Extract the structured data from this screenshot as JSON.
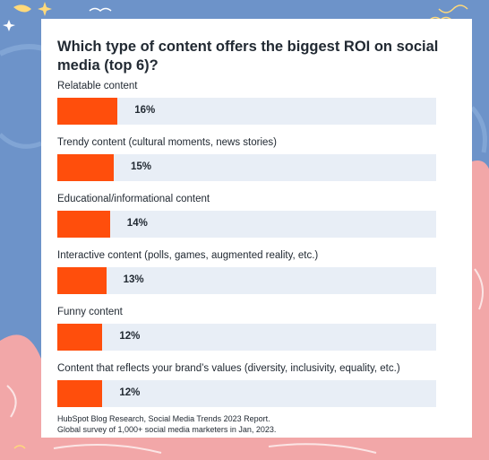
{
  "chart_data": {
    "type": "bar",
    "orientation": "horizontal",
    "title": "Which type of content offers the biggest ROI on social media (top 6)?",
    "categories": [
      "Relatable content",
      "Trendy content (cultural moments, news stories)",
      "Educational/informational content",
      "Interactive content (polls, games, augmented reality, etc.)",
      "Funny content",
      "Content that reflects your brand’s values (diversity, inclusivity, equality, etc.)"
    ],
    "values": [
      16,
      15,
      14,
      13,
      12,
      12
    ],
    "value_labels": [
      "16%",
      "15%",
      "14%",
      "13%",
      "12%",
      "12%"
    ],
    "unit": "%",
    "bar_color": "#ff4e0c",
    "track_color": "#e8eef6",
    "source": [
      "HubSpot Blog Research, Social Media Trends 2023 Report.",
      "Global survey of 1,000+ social media marketers in Jan, 2023."
    ],
    "grid": false,
    "legend": "none"
  }
}
